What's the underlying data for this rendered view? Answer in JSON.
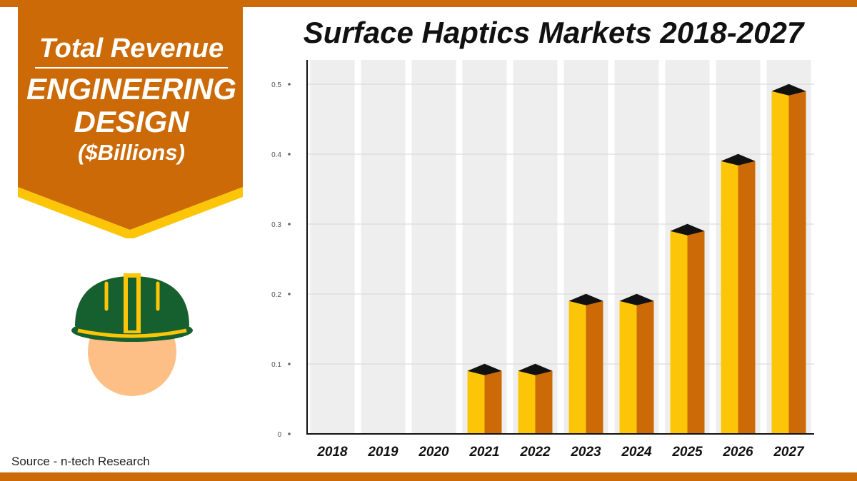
{
  "colors": {
    "accent_orange": "#CC6A07",
    "bar_front": "#FCC508",
    "bar_side": "#CC6A07",
    "bar_top": "#111111",
    "column_bg": "#EEEEEE",
    "helmet_green": "#16602F",
    "helmet_stripe": "#FCC508",
    "face": "#FDBF86"
  },
  "banner": {
    "line1": "Total Revenue",
    "line2": "ENGINEERING",
    "line3": "DESIGN",
    "line4": "($Billions)"
  },
  "icons": {
    "figure": "engineer-hardhat-icon"
  },
  "source": "Source - n-tech Research",
  "chart_data": {
    "type": "bar",
    "title": "Surface Haptics Markets 2018-2027",
    "xlabel": "",
    "ylabel": "",
    "categories": [
      "2018",
      "2019",
      "2020",
      "2021",
      "2022",
      "2023",
      "2024",
      "2025",
      "2026",
      "2027"
    ],
    "values": [
      0,
      0,
      0,
      0.09,
      0.09,
      0.19,
      0.19,
      0.29,
      0.39,
      0.49
    ],
    "ylim": [
      0,
      0.5
    ],
    "yticks": [
      0,
      0.1,
      0.2,
      0.3,
      0.4,
      0.5
    ],
    "ytick_labels": [
      "0",
      "0.1",
      "0.2",
      "0.3",
      "0.4",
      "0.5"
    ],
    "grid": true,
    "legend": "none"
  }
}
